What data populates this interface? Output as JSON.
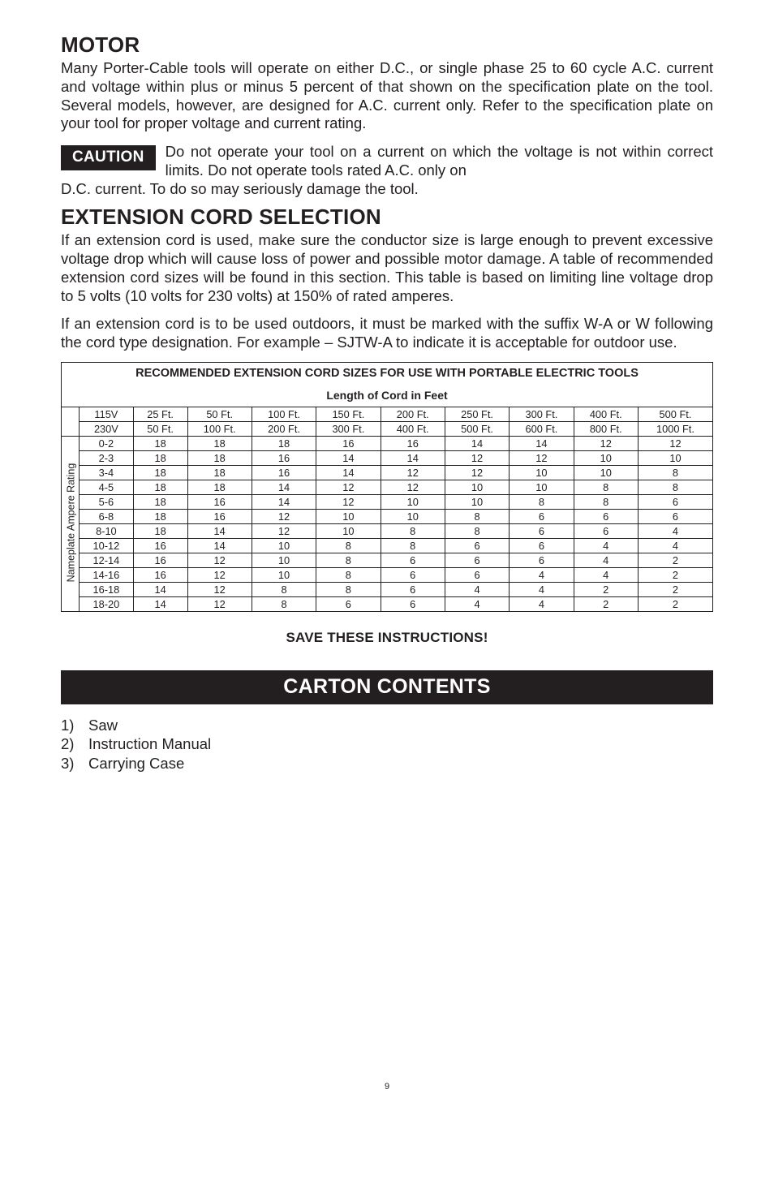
{
  "motor": {
    "heading": "MOTOR",
    "para": "Many Porter-Cable tools will operate on either D.C., or single phase 25 to 60 cycle A.C. current and voltage within plus or minus 5 percent of that shown on the specification plate on the tool. Several models, however, are designed for A.C. current only. Refer to the specification plate on your tool for proper voltage and current rating.",
    "caution_label": "CAUTION",
    "caution_text": "Do not operate your tool on a current on which the voltage is not within correct limits. Do not operate tools rated A.C. only on",
    "caution_continue": "D.C. current. To do so may seriously damage the tool."
  },
  "extcord": {
    "heading": "EXTENSION CORD SELECTION",
    "para1": "If an extension cord is used, make sure the conductor size is large enough to prevent excessive voltage drop which will cause loss of power and possible motor damage. A table of recommended extension cord sizes will be found in this section. This table is based on limiting line voltage drop to 5 volts (10 volts for 230 volts) at 150% of rated amperes.",
    "para2": "If an extension cord is to be used outdoors, it must be marked with the suffix W-A or W following the cord type designation. For example – SJTW-A to indicate it is acceptable for outdoor use."
  },
  "table": {
    "title": "RECOMMENDED EXTENSION CORD SIZES FOR USE WITH PORTABLE ELECTRIC TOOLS",
    "subtitle": "Length of Cord in Feet",
    "rot_label": "Nameplate Ampere Rating",
    "header1": [
      "115V",
      "25 Ft.",
      "50 Ft.",
      "100 Ft.",
      "150 Ft.",
      "200 Ft.",
      "250 Ft.",
      "300 Ft.",
      "400 Ft.",
      "500 Ft."
    ],
    "header2": [
      "230V",
      "50 Ft.",
      "100 Ft.",
      "200 Ft.",
      "300 Ft.",
      "400 Ft.",
      "500 Ft.",
      "600 Ft.",
      "800 Ft.",
      "1000 Ft."
    ],
    "rows": [
      [
        "0-2",
        "18",
        "18",
        "18",
        "16",
        "16",
        "14",
        "14",
        "12",
        "12"
      ],
      [
        "2-3",
        "18",
        "18",
        "16",
        "14",
        "14",
        "12",
        "12",
        "10",
        "10"
      ],
      [
        "3-4",
        "18",
        "18",
        "16",
        "14",
        "12",
        "12",
        "10",
        "10",
        "8"
      ],
      [
        "4-5",
        "18",
        "18",
        "14",
        "12",
        "12",
        "10",
        "10",
        "8",
        "8"
      ],
      [
        "5-6",
        "18",
        "16",
        "14",
        "12",
        "10",
        "10",
        "8",
        "8",
        "6"
      ],
      [
        "6-8",
        "18",
        "16",
        "12",
        "10",
        "10",
        "8",
        "6",
        "6",
        "6"
      ],
      [
        "8-10",
        "18",
        "14",
        "12",
        "10",
        "8",
        "8",
        "6",
        "6",
        "4"
      ],
      [
        "10-12",
        "16",
        "14",
        "10",
        "8",
        "8",
        "6",
        "6",
        "4",
        "4"
      ],
      [
        "12-14",
        "16",
        "12",
        "10",
        "8",
        "6",
        "6",
        "6",
        "4",
        "2"
      ],
      [
        "14-16",
        "16",
        "12",
        "10",
        "8",
        "6",
        "6",
        "4",
        "4",
        "2"
      ],
      [
        "16-18",
        "14",
        "12",
        "8",
        "8",
        "6",
        "4",
        "4",
        "2",
        "2"
      ],
      [
        "18-20",
        "14",
        "12",
        "8",
        "6",
        "6",
        "4",
        "4",
        "2",
        "2"
      ]
    ]
  },
  "save_line": "SAVE THESE INSTRUCTIONS!",
  "carton": {
    "heading": "CARTON CONTENTS",
    "items": [
      {
        "n": "1)",
        "t": "Saw"
      },
      {
        "n": "2)",
        "t": "Instruction Manual"
      },
      {
        "n": "3)",
        "t": "Carrying Case"
      }
    ]
  },
  "page_number": "9"
}
